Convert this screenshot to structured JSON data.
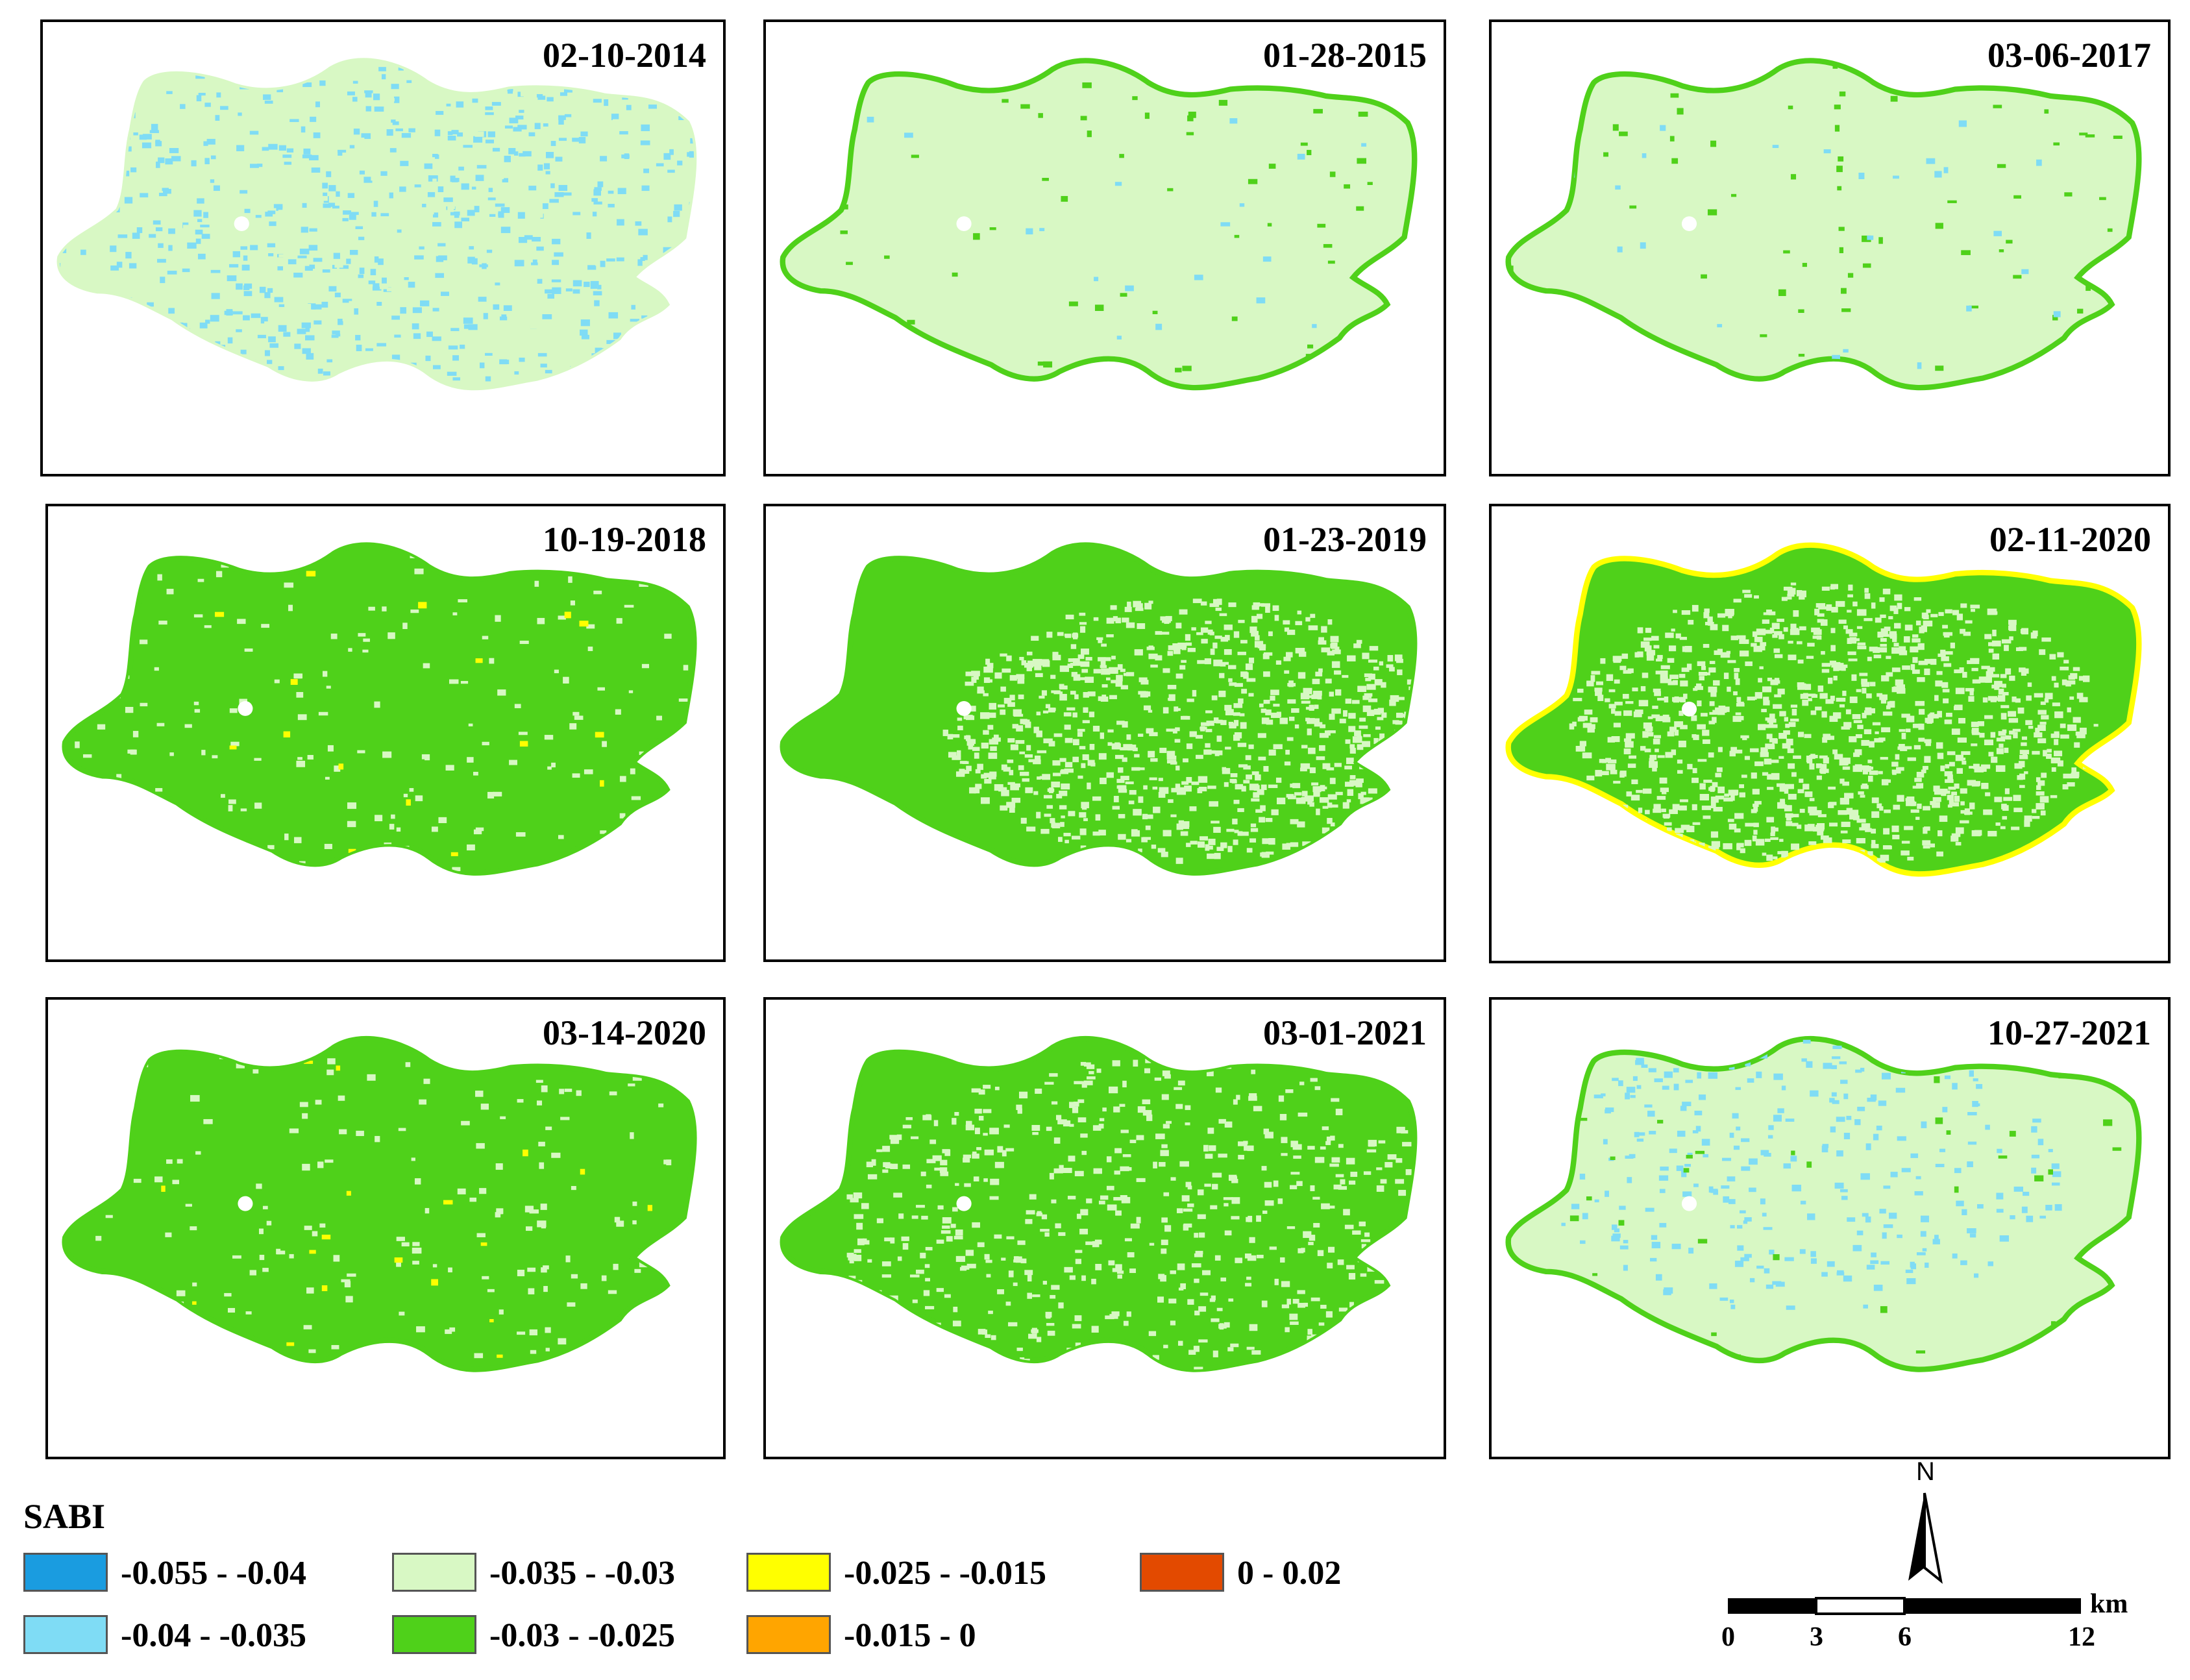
{
  "figure": {
    "panels": [
      {
        "date": "02-10-2014",
        "scheme": "blue"
      },
      {
        "date": "01-28-2015",
        "scheme": "pale"
      },
      {
        "date": "03-06-2017",
        "scheme": "pale"
      },
      {
        "date": "10-19-2018",
        "scheme": "green"
      },
      {
        "date": "01-23-2019",
        "scheme": "split"
      },
      {
        "date": "02-11-2020",
        "scheme": "ring"
      },
      {
        "date": "03-14-2020",
        "scheme": "green"
      },
      {
        "date": "03-01-2021",
        "scheme": "mixed"
      },
      {
        "date": "10-27-2021",
        "scheme": "paleblue"
      }
    ]
  },
  "legend": {
    "title": "SABI",
    "classes": [
      {
        "label": "-0.055 - -0.04",
        "color": "#1a9ce0"
      },
      {
        "label": "-0.04 - -0.035",
        "color": "#7fdcf5"
      },
      {
        "label": "-0.035 - -0.03",
        "color": "#d8f8c4"
      },
      {
        "label": "-0.03 - -0.025",
        "color": "#4fd11a"
      },
      {
        "label": "-0.025 - -0.015",
        "color": "#ffff00"
      },
      {
        "label": "-0.015 - 0",
        "color": "#ffa500"
      },
      {
        "label": "0 - 0.02",
        "color": "#e34a00"
      }
    ]
  },
  "scale_bar": {
    "north_label": "N",
    "unit": "km",
    "ticks": [
      "0",
      "3",
      "6",
      "12"
    ]
  }
}
